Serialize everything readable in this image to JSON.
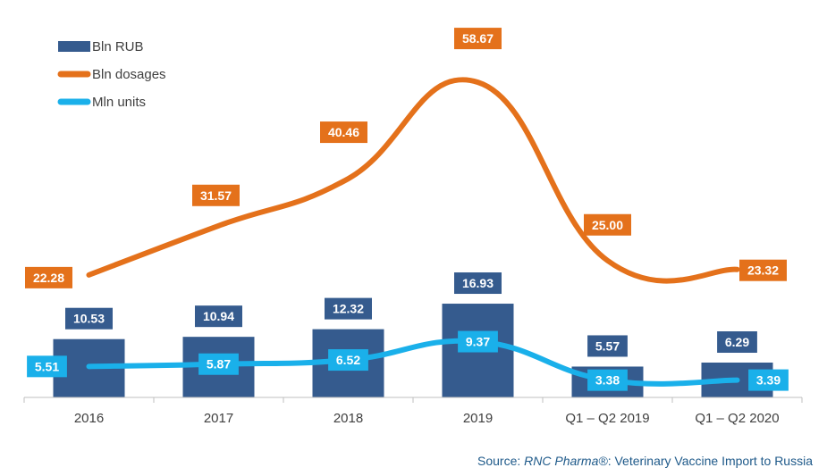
{
  "chart_data": {
    "type": "bar",
    "categories": [
      "2016",
      "2017",
      "2018",
      "2019",
      "Q1 – Q2 2019",
      "Q1 – Q2 2020"
    ],
    "series": [
      {
        "name": "Bln RUB",
        "type": "bar",
        "values": [
          10.53,
          10.94,
          12.32,
          16.93,
          5.57,
          6.29
        ]
      },
      {
        "name": "Bln dosages",
        "type": "line",
        "values": [
          22.28,
          31.57,
          40.46,
          58.67,
          25.0,
          23.32
        ]
      },
      {
        "name": "Mln units",
        "type": "line",
        "values": [
          5.51,
          5.87,
          6.52,
          9.37,
          3.38,
          3.39
        ]
      }
    ],
    "value_labels": {
      "Bln RUB": [
        "10.53",
        "10.94",
        "12.32",
        "16.93",
        "5.57",
        "6.29"
      ],
      "Bln dosages": [
        "22.28",
        "31.57",
        "40.46",
        "58.67",
        "25.00",
        "23.32"
      ],
      "Mln units": [
        "5.51",
        "5.87",
        "6.52",
        "9.37",
        "3.38",
        "3.39"
      ]
    },
    "colors": {
      "Bln RUB": "#355b8e",
      "Bln dosages": "#e4711b",
      "Mln units": "#1ab0ea"
    },
    "legend_position": "top-left",
    "grid": false,
    "smooth_lines": true
  },
  "source": {
    "prefix": "Source: ",
    "brand": "RNC Pharma®",
    "suffix": ": Veterinary Vaccine Import to Russia"
  }
}
